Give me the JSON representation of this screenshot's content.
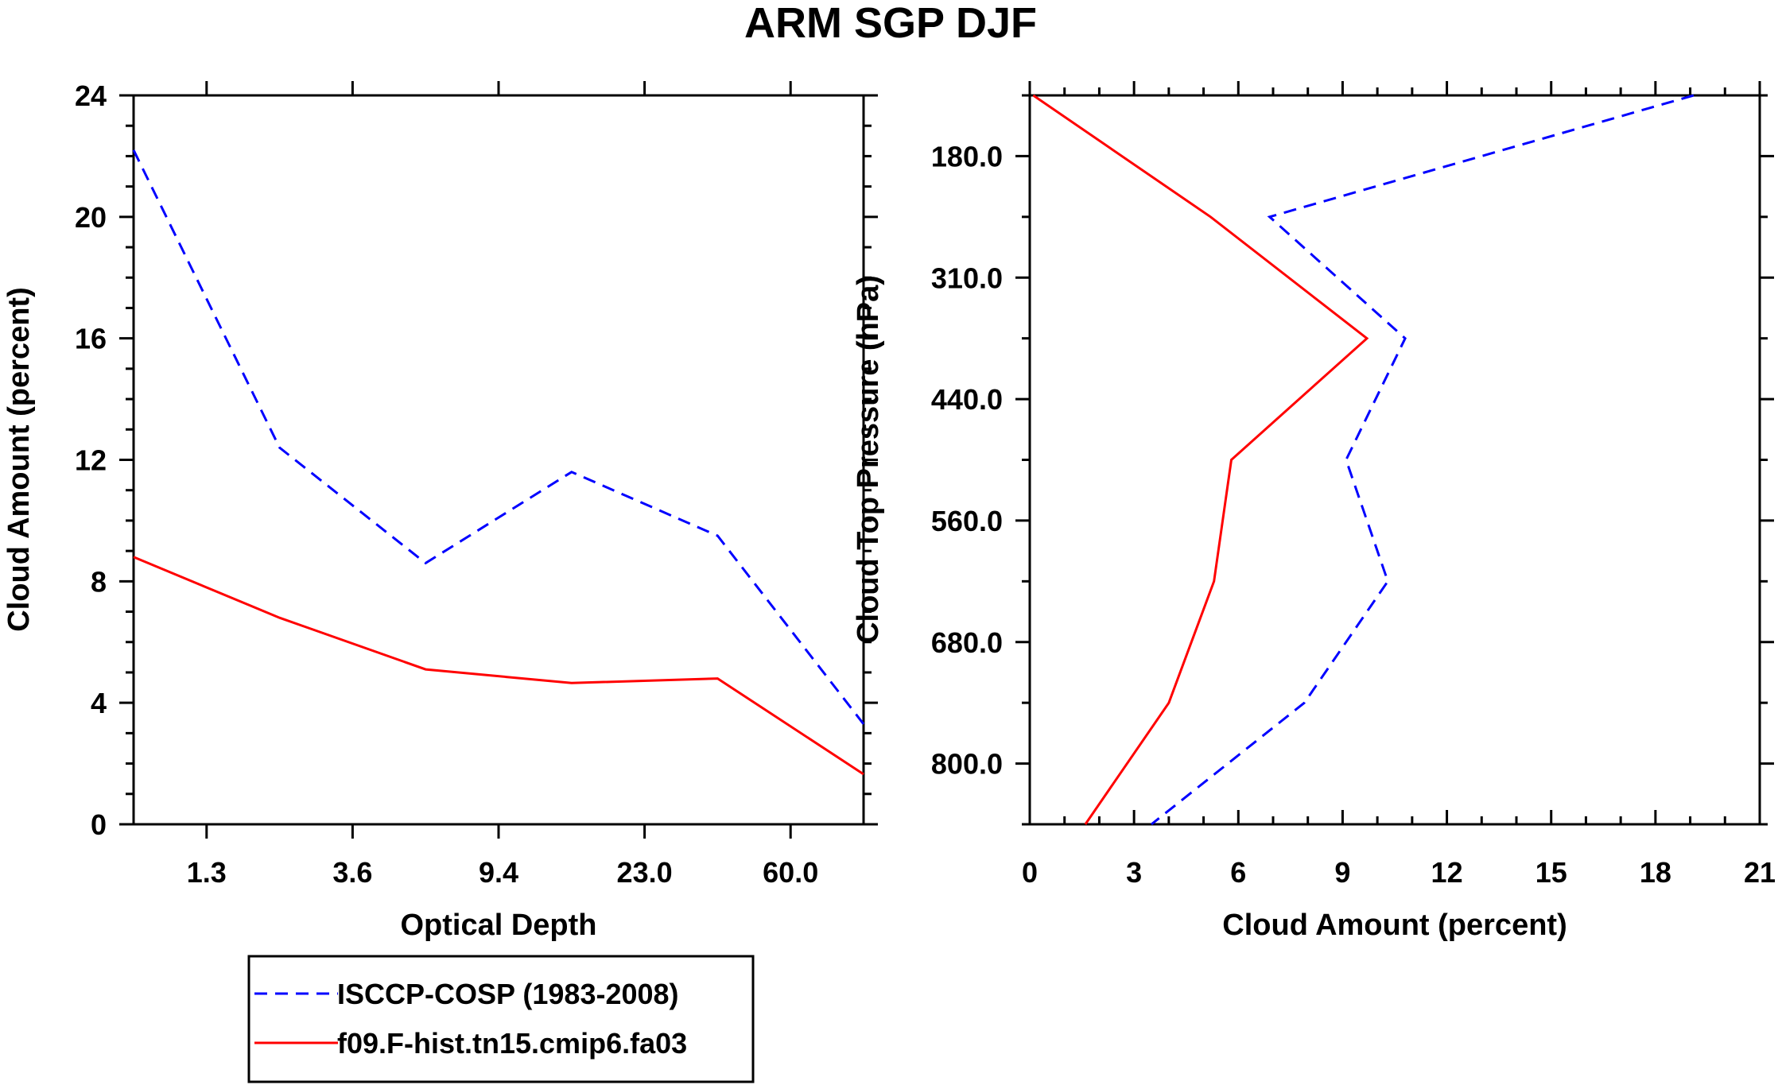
{
  "title": "ARM SGP DJF",
  "series_styles": {
    "isccp": {
      "color": "#0000ff",
      "dash": "dashed"
    },
    "model": {
      "color": "#ff0000",
      "dash": "solid"
    }
  },
  "legend": {
    "items": [
      {
        "key": "isccp",
        "label": "ISCCP-COSP (1983-2008)"
      },
      {
        "key": "model",
        "label": "f09.F-hist.tn15.cmip6.fa03"
      }
    ]
  },
  "chart_data": [
    {
      "type": "line",
      "xlabel": "Optical Depth",
      "ylabel": "Cloud Amount (percent)",
      "x_tick_labels": [
        "1.3",
        "3.6",
        "9.4",
        "23.0",
        "60.0"
      ],
      "y_ticks": [
        0,
        4,
        8,
        12,
        16,
        20,
        24
      ],
      "ylim": [
        0,
        24
      ],
      "bins": 5,
      "series": [
        {
          "key": "isccp",
          "name": "ISCCP-COSP (1983-2008)",
          "x": [
            0,
            1,
            2,
            3,
            4,
            5
          ],
          "values": [
            22.2,
            12.4,
            8.6,
            11.6,
            9.5,
            3.3
          ]
        },
        {
          "key": "model",
          "name": "f09.F-hist.tn15.cmip6.fa03",
          "x": [
            0,
            1,
            2,
            3,
            4,
            5
          ],
          "values": [
            8.8,
            6.8,
            5.1,
            4.65,
            4.8,
            1.65
          ]
        }
      ]
    },
    {
      "type": "line",
      "xlabel": "Cloud Amount (percent)",
      "ylabel": "Cloud Top Pressure (hPa)",
      "x_ticks": [
        0,
        3,
        6,
        9,
        12,
        15,
        18,
        21
      ],
      "xlim": [
        0,
        21
      ],
      "y_tick_labels": [
        "180.0",
        "310.0",
        "440.0",
        "560.0",
        "680.0",
        "800.0"
      ],
      "levels": 6,
      "series": [
        {
          "key": "isccp",
          "name": "ISCCP-COSP (1983-2008)",
          "levels": [
            0,
            1,
            2,
            3,
            4,
            5,
            6
          ],
          "values": [
            19.1,
            6.9,
            10.8,
            9.1,
            10.3,
            7.9,
            3.5
          ]
        },
        {
          "key": "model",
          "name": "f09.F-hist.tn15.cmip6.fa03",
          "levels": [
            0,
            1,
            2,
            3,
            4,
            5,
            6
          ],
          "values": [
            0.1,
            5.2,
            9.7,
            5.8,
            5.3,
            4.0,
            1.6
          ]
        }
      ]
    }
  ]
}
